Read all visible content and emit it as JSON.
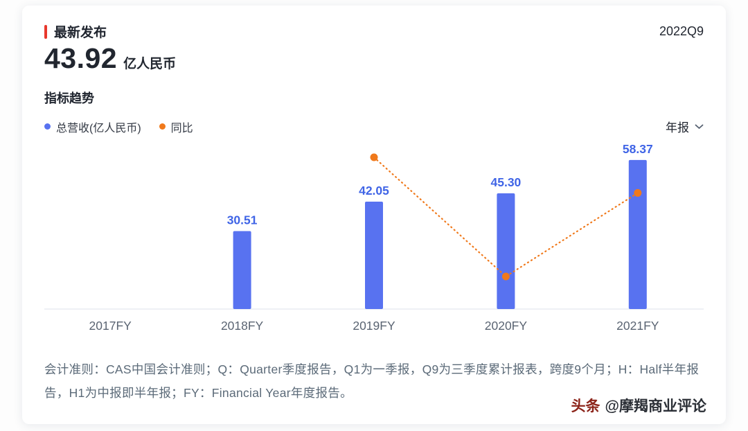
{
  "header": {
    "section_title": "最新发布",
    "metric_value": "43.92",
    "metric_unit": "亿人民币",
    "period": "2022Q9"
  },
  "trend": {
    "title": "指标趋势",
    "legend": [
      {
        "label": "总营收(亿人民币)",
        "color": "#5872F0"
      },
      {
        "label": "同比",
        "color": "#F0791B"
      }
    ],
    "period_selector": "年报"
  },
  "chart_data": {
    "type": "bar",
    "categories": [
      "2017FY",
      "2018FY",
      "2019FY",
      "2020FY",
      "2021FY"
    ],
    "series": [
      {
        "name": "总营收(亿人民币)",
        "type": "bar",
        "color": "#5872F0",
        "values": [
          null,
          30.51,
          42.05,
          45.3,
          58.37
        ]
      },
      {
        "name": "同比",
        "type": "line",
        "style": "dotted",
        "color": "#F0791B",
        "values_estimated_pct": [
          null,
          null,
          37.8,
          7.7,
          28.8
        ]
      }
    ],
    "ylim": [
      0,
      67
    ],
    "grid": false,
    "legend_position": "top-left",
    "value_label_color": "#3F64E6",
    "axis_label_color": "#5A6472"
  },
  "footnote": "会计准则：CAS中国会计准则；Q：Quarter季度报告，Q1为一季报，Q9为三季度累计报表，跨度9个月；H：Half半年报告，H1为中报即半年报；FY：Financial Year年度报告。",
  "watermark": {
    "brand": "头条",
    "handle": "@摩羯商业评论"
  }
}
